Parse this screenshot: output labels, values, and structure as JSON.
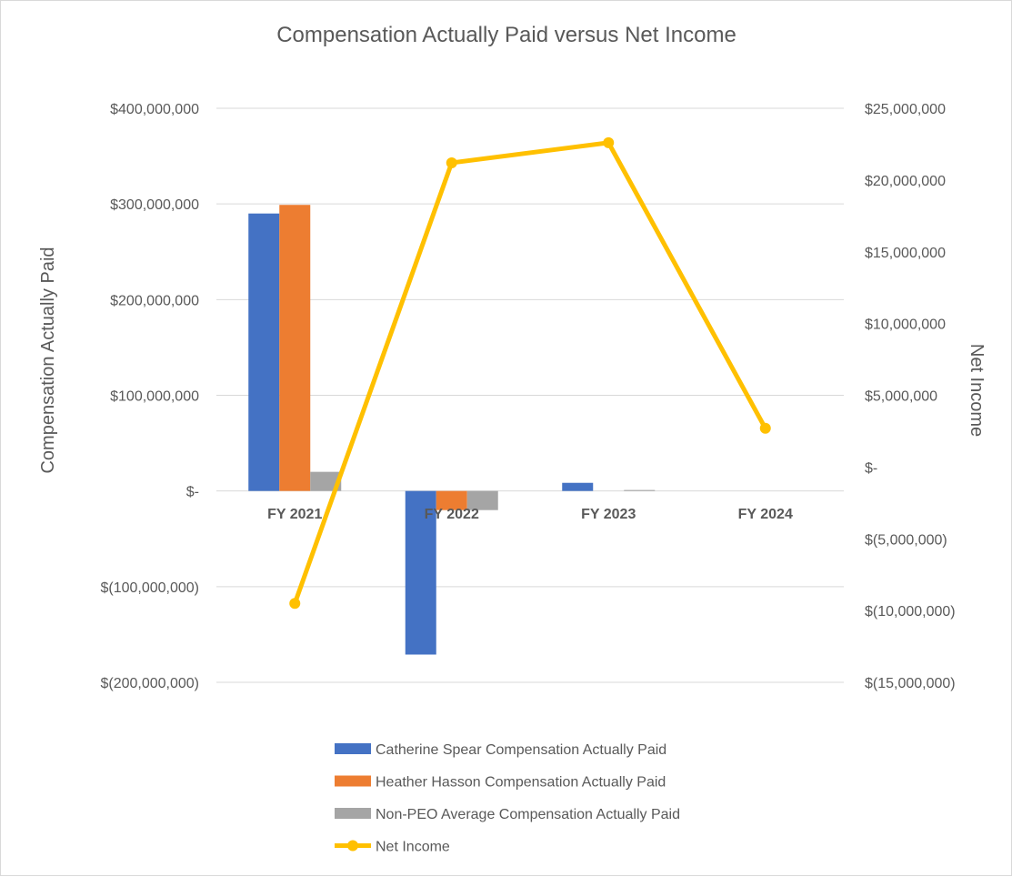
{
  "chart_data": {
    "type": "bar",
    "title": "Compensation Actually Paid versus Net Income",
    "categories": [
      "FY 2021",
      "FY 2022",
      "FY 2023",
      "FY 2024"
    ],
    "y_left": {
      "label": "Compensation Actually Paid",
      "lim": [
        -200000000,
        400000000
      ],
      "ticks": [
        400000000,
        300000000,
        200000000,
        100000000,
        0,
        -100000000,
        -200000000
      ],
      "tick_labels": [
        "$400,000,000",
        "$300,000,000",
        "$200,000,000",
        "$100,000,000",
        "$-",
        "$(100,000,000)",
        "$(200,000,000)"
      ]
    },
    "y_right": {
      "label": "Net Income",
      "lim": [
        -15000000,
        25000000
      ],
      "ticks": [
        25000000,
        20000000,
        15000000,
        10000000,
        5000000,
        0,
        -5000000,
        -10000000,
        -15000000
      ],
      "tick_labels": [
        "$25,000,000",
        "$20,000,000",
        "$15,000,000",
        "$10,000,000",
        "$5,000,000",
        "$-",
        "$(5,000,000)",
        "$(10,000,000)",
        "$(15,000,000)"
      ]
    },
    "bar_series": [
      {
        "name": "Catherine Spear Compensation Actually Paid",
        "color": "#4472C4",
        "values": [
          290000000,
          -171000000,
          8500000,
          0
        ]
      },
      {
        "name": "Heather Hasson Compensation Actually Paid",
        "color": "#ED7D31",
        "values": [
          299000000,
          -20000000,
          0,
          0
        ]
      },
      {
        "name": "Non-PEO Average Compensation Actually Paid",
        "color": "#A5A5A5",
        "values": [
          20000000,
          -20000000,
          1000000,
          0
        ]
      }
    ],
    "line_series": [
      {
        "name": "Net Income",
        "color": "#FFC000",
        "axis": "right",
        "values": [
          -9500000,
          21200000,
          22600000,
          2700000
        ]
      }
    ],
    "grid": true,
    "legend_position": "bottom"
  }
}
